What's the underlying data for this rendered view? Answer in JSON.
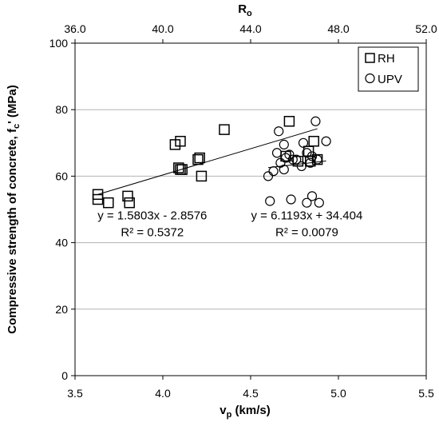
{
  "chart_data": {
    "type": "scatter",
    "xlabel": "v",
    "xlabel_sub": "p",
    "xlabel_unit": " (km/s)",
    "ylabel": "Compressive strength of concrete, f",
    "ylabel_sub": "c",
    "ylabel_unit": "' (MPa)",
    "x2label": "R",
    "x2label_sub": "o",
    "xlim": [
      3.5,
      5.5
    ],
    "ylim": [
      0,
      100
    ],
    "x2lim": [
      36.0,
      52.0
    ],
    "xticks": [
      "3.5",
      "4.0",
      "4.5",
      "5.0",
      "5.5"
    ],
    "yticks": [
      "0",
      "20",
      "40",
      "60",
      "80",
      "100"
    ],
    "x2ticks": [
      "36.0",
      "40.0",
      "44.0",
      "48.0",
      "52.0"
    ],
    "grid": "horizontal",
    "legend_position": "top-right",
    "colors": {
      "marker": "#000000",
      "grid": "#b3b3b3",
      "background": "#ffffff"
    },
    "series": [
      {
        "name": "RH",
        "marker": "square",
        "x": [
          3.63,
          3.63,
          3.69,
          3.8,
          3.81,
          4.07,
          4.09,
          4.1,
          4.1,
          4.11,
          4.2,
          4.21,
          4.22,
          4.35,
          4.7,
          4.72,
          4.77,
          4.83,
          4.84,
          4.86,
          4.88
        ],
        "y": [
          54.5,
          53.0,
          52.0,
          54.0,
          52.0,
          69.5,
          62.5,
          70.5,
          62.0,
          62.0,
          65.0,
          65.5,
          60.0,
          74.0,
          66.0,
          76.5,
          64.5,
          67.5,
          64.5,
          70.5,
          65.0
        ]
      },
      {
        "name": "UPV",
        "marker": "circle",
        "x": [
          4.6,
          4.61,
          4.63,
          4.65,
          4.66,
          4.67,
          4.69,
          4.69,
          4.7,
          4.72,
          4.73,
          4.74,
          4.76,
          4.79,
          4.8,
          4.82,
          4.82,
          4.84,
          4.85,
          4.85,
          4.87,
          4.88,
          4.89,
          4.93
        ],
        "y": [
          60.0,
          52.5,
          61.5,
          67.0,
          73.5,
          64.0,
          62.0,
          69.5,
          65.5,
          66.5,
          53.0,
          65.0,
          65.0,
          63.0,
          70.0,
          52.0,
          67.0,
          64.0,
          66.0,
          54.0,
          76.5,
          65.0,
          52.0,
          70.5
        ]
      }
    ],
    "trendlines": [
      {
        "series": "RH",
        "slope": 15.803,
        "intercept": -2.8576,
        "x_range": [
          3.63,
          4.88
        ]
      },
      {
        "series": "UPV",
        "slope": 6.1193,
        "intercept": 34.404,
        "x_range": [
          4.6,
          4.93
        ]
      }
    ],
    "annotations": [
      {
        "id": "rh-eq",
        "text": "y = 1.5803x - 2.8576",
        "x": 3.94,
        "y": 47
      },
      {
        "id": "rh-r2",
        "text": "R² = 0.5372",
        "x": 3.94,
        "y": 42
      },
      {
        "id": "upv-eq",
        "text": "y = 6.1193x + 34.404",
        "x": 4.82,
        "y": 47
      },
      {
        "id": "upv-r2",
        "text": "R² = 0.0079",
        "x": 4.82,
        "y": 42
      }
    ]
  }
}
